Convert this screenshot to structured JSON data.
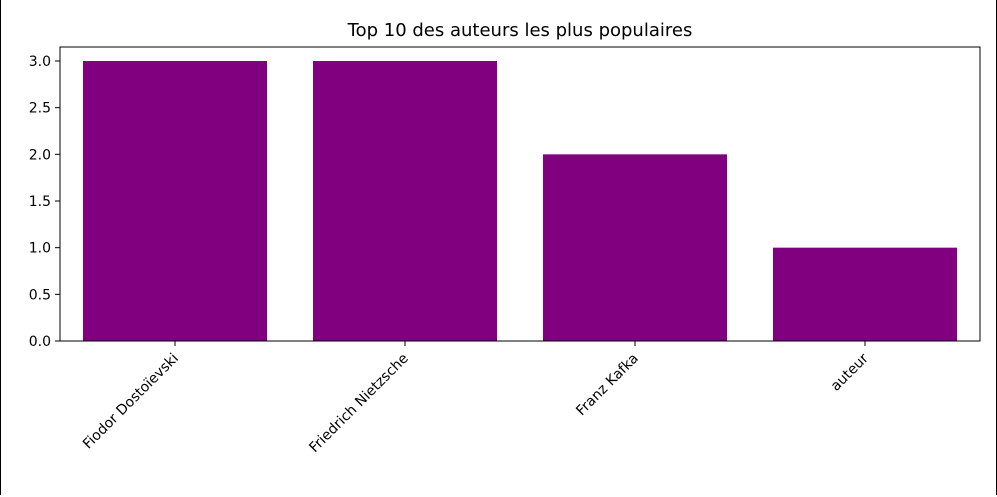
{
  "chart_data": {
    "type": "bar",
    "title": "Top 10 des auteurs les plus populaires",
    "xlabel": "",
    "ylabel": "",
    "categories": [
      "Fiodor Dostoïevski",
      "Friedrich Nietzsche",
      "Franz Kafka",
      "auteur"
    ],
    "values": [
      3,
      3,
      2,
      1
    ],
    "ylim": [
      0,
      3.15
    ],
    "yticks": [
      "0.0",
      "0.5",
      "1.0",
      "1.5",
      "2.0",
      "2.5",
      "3.0"
    ],
    "bar_color": "#800080",
    "grid": false,
    "legend": "none"
  }
}
